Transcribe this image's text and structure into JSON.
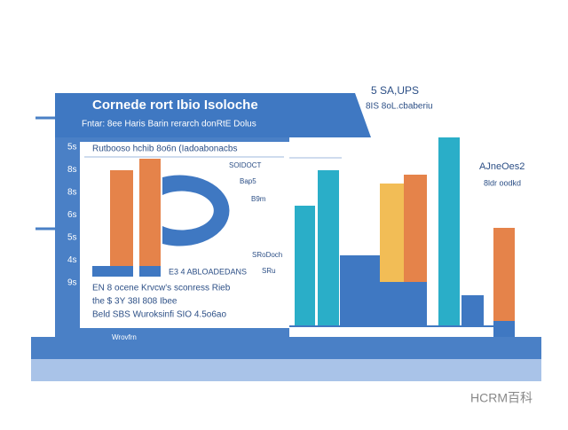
{
  "header": {
    "title": "Cornede  rort Ibio Isoloche",
    "subtitle": "Fntar: 8ee Haris Barin rerarch donRtE Dolus"
  },
  "side_labels": [
    "5s",
    "8s",
    "8s",
    "6s",
    "5s",
    "4s",
    "9s"
  ],
  "card": {
    "heading": "Rutbooso  hchib  8o6n (Iadoabonacbs",
    "labels": [
      "SOIDOCT",
      "Bap5",
      "B9m",
      "SRoDoch",
      "SRu"
    ],
    "caption": "E3 4 ABLOADEDANS",
    "lines": [
      "EN 8 ocene Krvcw's sconress Rieb",
      "the  $  3Y 38I  808  Ibee",
      "Beld  SBS Wuroksinfi  SIO 4.5o6ao"
    ]
  },
  "right": {
    "title": "5 SA,UPS",
    "subtitle": "8IS 8oL.cbaberiu",
    "note_title": "AJneOes2",
    "note_text": "8ldr oodkd"
  },
  "footer_label": "Wrovfrn",
  "watermark": "HCRM百科"
}
